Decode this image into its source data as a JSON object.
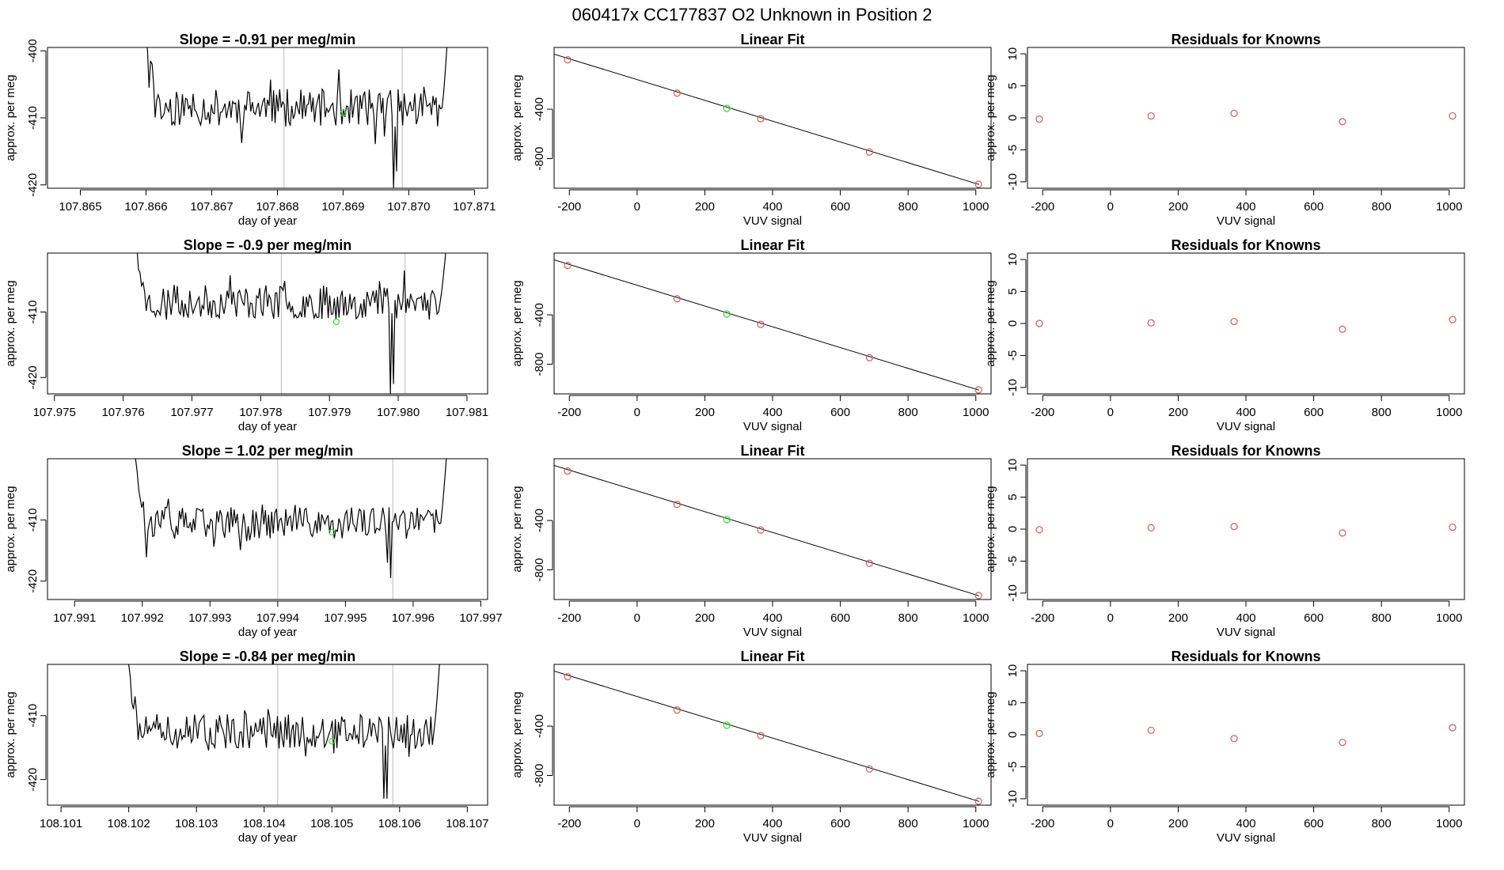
{
  "figure": {
    "title": "060417x      CC177837   O2 Unknown in Position  2"
  },
  "colors": {
    "trace": "#000000",
    "known_point": "#cd5c5c",
    "unknown_point": "#33dd33",
    "vline": "#bbbbbb",
    "axis": "#000000"
  },
  "labels": {
    "per_meg": "approx. per meg",
    "doy": "day of year",
    "vuv": "VUV signal",
    "linear_fit": "Linear Fit",
    "residuals": "Residuals for Knowns"
  },
  "rows": [
    {
      "slope_title": "Slope =  -0.91  per meg/min"
    },
    {
      "slope_title": "Slope =  -0.9  per meg/min"
    },
    {
      "slope_title": "Slope =  1.02  per meg/min"
    },
    {
      "slope_title": "Slope =  -0.84  per meg/min"
    }
  ],
  "chart_data": [
    {
      "type": "line",
      "row": 0,
      "col": 0,
      "title": "Slope =  -0.91  per meg/min",
      "xlabel": "day of year",
      "ylabel": "approx. per meg",
      "xlim": [
        107.8645,
        107.8712
      ],
      "ylim": [
        -420.5,
        -399.5
      ],
      "xticks": [
        107.865,
        107.866,
        107.867,
        107.868,
        107.869,
        107.87,
        107.871
      ],
      "xtick_labels": [
        "107.865",
        "107.866",
        "107.867",
        "107.868",
        "107.869",
        "107.870",
        "107.871"
      ],
      "yticks": [
        -400,
        -410,
        -420
      ],
      "ytick_labels": [
        "-400",
        "-410",
        "-420"
      ],
      "vlines": [
        107.8681,
        107.8699
      ],
      "green_point": {
        "x": 107.869,
        "y": -409.3
      },
      "trace": {
        "x_start": 107.866,
        "x_end": 107.8706,
        "n": 200,
        "mean": -408.5,
        "amp": 2.8,
        "seed": 11,
        "start_values": [
          -398,
          -400,
          -405.5,
          -401.5,
          -402,
          -405
        ],
        "dips": [
          [
            0.82,
            -420.5
          ],
          [
            0.83,
            -418
          ]
        ],
        "spike_up": -398
      }
    },
    {
      "type": "scatter",
      "row": 0,
      "col": 1,
      "title": "Linear Fit",
      "xlabel": "VUV signal",
      "ylabel": "approx. per meg",
      "xlim": [
        -245,
        1045
      ],
      "ylim": [
        -1040,
        100
      ],
      "xticks": [
        -200,
        0,
        200,
        400,
        600,
        800,
        1000
      ],
      "xtick_labels": [
        "-200",
        "0",
        "200",
        "400",
        "600",
        "800",
        "1000"
      ],
      "yticks": [
        -400,
        -800
      ],
      "ytick_labels": [
        "-400",
        "-800"
      ],
      "fit_line": {
        "x": [
          -250,
          1010
        ],
        "y": [
          50,
          -1010
        ]
      },
      "knowns": {
        "x": [
          -205,
          118,
          365,
          686,
          1008
        ],
        "y": [
          0,
          -270,
          -477,
          -747,
          -1008
        ]
      },
      "unknown": {
        "x": 265,
        "y": -393
      }
    },
    {
      "type": "scatter",
      "row": 0,
      "col": 2,
      "title": "Residuals for Knowns",
      "xlabel": "VUV signal",
      "ylabel": "approx. per meg",
      "xlim": [
        -245,
        1045
      ],
      "ylim": [
        -11,
        11
      ],
      "xticks": [
        -200,
        0,
        200,
        400,
        600,
        800,
        1000
      ],
      "xtick_labels": [
        "-200",
        "0",
        "200",
        "400",
        "600",
        "800",
        "1000"
      ],
      "yticks": [
        10,
        5,
        0,
        -5,
        -10
      ],
      "ytick_labels": [
        "10",
        "5",
        "0",
        "-5",
        "-10"
      ],
      "knowns": {
        "x": [
          -210,
          120,
          365,
          685,
          1010
        ],
        "y": [
          -0.2,
          0.3,
          0.7,
          -0.6,
          0.3
        ]
      }
    },
    {
      "type": "line",
      "row": 1,
      "col": 0,
      "title": "Slope =  -0.9  per meg/min",
      "xlabel": "day of year",
      "ylabel": "approx. per meg",
      "xlim": [
        107.9749,
        107.9813
      ],
      "ylim": [
        -422.5,
        -401
      ],
      "xticks": [
        107.975,
        107.976,
        107.977,
        107.978,
        107.979,
        107.98,
        107.981
      ],
      "xtick_labels": [
        "107.975",
        "107.976",
        "107.977",
        "107.978",
        "107.979",
        "107.980",
        "107.981"
      ],
      "yticks": [
        -410,
        -420
      ],
      "ytick_labels": [
        "-410",
        "-420"
      ],
      "vlines": [
        107.9783,
        107.9801
      ],
      "green_point": {
        "x": 107.9791,
        "y": -411.5
      },
      "trace": {
        "x_start": 107.9762,
        "x_end": 107.9807,
        "n": 200,
        "mean": -408.5,
        "amp": 2.6,
        "seed": 23,
        "start_values": [
          -400,
          -403.5,
          -404,
          -406,
          -405.5,
          -407
        ],
        "dips": [
          [
            0.82,
            -422.5
          ],
          [
            0.83,
            -421
          ]
        ],
        "spike_up": -401
      }
    },
    {
      "type": "scatter",
      "row": 1,
      "col": 1,
      "title": "Linear Fit",
      "xlabel": "VUV signal",
      "ylabel": "approx. per meg",
      "xlim": [
        -245,
        1045
      ],
      "ylim": [
        -1040,
        100
      ],
      "xticks": [
        -200,
        0,
        200,
        400,
        600,
        800,
        1000
      ],
      "xtick_labels": [
        "-200",
        "0",
        "200",
        "400",
        "600",
        "800",
        "1000"
      ],
      "yticks": [
        -400,
        -800
      ],
      "ytick_labels": [
        "-400",
        "-800"
      ],
      "fit_line": {
        "x": [
          -250,
          1010
        ],
        "y": [
          50,
          -1010
        ]
      },
      "knowns": {
        "x": [
          -205,
          118,
          365,
          686,
          1008
        ],
        "y": [
          0,
          -270,
          -477,
          -747,
          -1008
        ]
      },
      "unknown": {
        "x": 265,
        "y": -393
      }
    },
    {
      "type": "scatter",
      "row": 1,
      "col": 2,
      "title": "Residuals for Knowns",
      "xlabel": "VUV signal",
      "ylabel": "approx. per meg",
      "xlim": [
        -245,
        1045
      ],
      "ylim": [
        -11,
        11
      ],
      "xticks": [
        -200,
        0,
        200,
        400,
        600,
        800,
        1000
      ],
      "xtick_labels": [
        "-200",
        "0",
        "200",
        "400",
        "600",
        "800",
        "1000"
      ],
      "yticks": [
        10,
        5,
        0,
        -5,
        -10
      ],
      "ytick_labels": [
        "10",
        "5",
        "0",
        "-5",
        "-10"
      ],
      "knowns": {
        "x": [
          -210,
          120,
          365,
          685,
          1010
        ],
        "y": [
          0.0,
          0.1,
          0.3,
          -0.9,
          0.6
        ]
      }
    },
    {
      "type": "line",
      "row": 2,
      "col": 0,
      "title": "Slope =  1.02  per meg/min",
      "xlabel": "day of year",
      "ylabel": "approx. per meg",
      "xlim": [
        107.9906,
        107.9971
      ],
      "ylim": [
        -423,
        -400
      ],
      "xticks": [
        107.991,
        107.992,
        107.993,
        107.994,
        107.995,
        107.996,
        107.997
      ],
      "xtick_labels": [
        "107.991",
        "107.992",
        "107.993",
        "107.994",
        "107.995",
        "107.996",
        "107.997"
      ],
      "yticks": [
        -410,
        -420
      ],
      "ytick_labels": [
        "-410",
        "-420"
      ],
      "vlines": [
        107.994,
        107.9957
      ],
      "green_point": {
        "x": 107.9948,
        "y": -412
      },
      "trace": {
        "x_start": 107.9919,
        "x_end": 107.9965,
        "n": 200,
        "mean": -410.5,
        "amp": 2.6,
        "seed": 37,
        "start_values": [
          -400,
          -402,
          -405,
          -406.5,
          -408,
          -407
        ],
        "dips": [
          [
            0.82,
            -419.5
          ],
          [
            0.81,
            -417
          ]
        ],
        "spike_up": -400
      }
    },
    {
      "type": "scatter",
      "row": 2,
      "col": 1,
      "title": "Linear Fit",
      "xlabel": "VUV signal",
      "ylabel": "approx. per meg",
      "xlim": [
        -245,
        1045
      ],
      "ylim": [
        -1040,
        100
      ],
      "xticks": [
        -200,
        0,
        200,
        400,
        600,
        800,
        1000
      ],
      "xtick_labels": [
        "-200",
        "0",
        "200",
        "400",
        "600",
        "800",
        "1000"
      ],
      "yticks": [
        -400,
        -800
      ],
      "ytick_labels": [
        "-400",
        "-800"
      ],
      "fit_line": {
        "x": [
          -250,
          1010
        ],
        "y": [
          50,
          -1010
        ]
      },
      "knowns": {
        "x": [
          -205,
          118,
          365,
          686,
          1008
        ],
        "y": [
          0,
          -270,
          -477,
          -747,
          -1008
        ]
      },
      "unknown": {
        "x": 265,
        "y": -393
      }
    },
    {
      "type": "scatter",
      "row": 2,
      "col": 2,
      "title": "Residuals for Knowns",
      "xlabel": "VUV signal",
      "ylabel": "approx. per meg",
      "xlim": [
        -245,
        1045
      ],
      "ylim": [
        -11,
        11
      ],
      "xticks": [
        -200,
        0,
        200,
        400,
        600,
        800,
        1000
      ],
      "xtick_labels": [
        "-200",
        "0",
        "200",
        "400",
        "600",
        "800",
        "1000"
      ],
      "yticks": [
        10,
        5,
        0,
        -5,
        -10
      ],
      "ytick_labels": [
        "10",
        "5",
        "0",
        "-5",
        "-10"
      ],
      "knowns": {
        "x": [
          -210,
          120,
          365,
          685,
          1010
        ],
        "y": [
          -0.1,
          0.2,
          0.4,
          -0.6,
          0.3
        ]
      }
    },
    {
      "type": "line",
      "row": 3,
      "col": 0,
      "title": "Slope =  -0.84  per meg/min",
      "xlabel": "day of year",
      "ylabel": "approx. per meg",
      "xlim": [
        108.1008,
        108.1073
      ],
      "ylim": [
        -424,
        -402
      ],
      "xticks": [
        108.101,
        108.102,
        108.103,
        108.104,
        108.105,
        108.106,
        108.107
      ],
      "xtick_labels": [
        "108.101",
        "108.102",
        "108.103",
        "108.104",
        "108.105",
        "108.106",
        "108.107"
      ],
      "yticks": [
        -410,
        -420
      ],
      "ytick_labels": [
        "-410",
        "-420"
      ],
      "vlines": [
        108.1042,
        108.1059
      ],
      "green_point": {
        "x": 108.105,
        "y": -414
      },
      "trace": {
        "x_start": 108.102,
        "x_end": 108.1066,
        "n": 200,
        "mean": -412.5,
        "amp": 2.7,
        "seed": 51,
        "start_values": [
          -402,
          -404,
          -408,
          -409,
          -407,
          -409.5
        ],
        "dips": [
          [
            0.82,
            -423
          ],
          [
            0.83,
            -423
          ]
        ],
        "spike_up": -402
      }
    },
    {
      "type": "scatter",
      "row": 3,
      "col": 1,
      "title": "Linear Fit",
      "xlabel": "VUV signal",
      "ylabel": "approx. per meg",
      "xlim": [
        -245,
        1045
      ],
      "ylim": [
        -1040,
        100
      ],
      "xticks": [
        -200,
        0,
        200,
        400,
        600,
        800,
        1000
      ],
      "xtick_labels": [
        "-200",
        "0",
        "200",
        "400",
        "600",
        "800",
        "1000"
      ],
      "yticks": [
        -400,
        -800
      ],
      "ytick_labels": [
        "-400",
        "-800"
      ],
      "fit_line": {
        "x": [
          -250,
          1010
        ],
        "y": [
          50,
          -1010
        ]
      },
      "knowns": {
        "x": [
          -205,
          118,
          365,
          686,
          1008
        ],
        "y": [
          0,
          -270,
          -477,
          -747,
          -1008
        ]
      },
      "unknown": {
        "x": 265,
        "y": -393
      }
    },
    {
      "type": "scatter",
      "row": 3,
      "col": 2,
      "title": "Residuals for Knowns",
      "xlabel": "VUV signal",
      "ylabel": "approx. per meg",
      "xlim": [
        -245,
        1045
      ],
      "ylim": [
        -11,
        11
      ],
      "xticks": [
        -200,
        0,
        200,
        400,
        600,
        800,
        1000
      ],
      "xtick_labels": [
        "-200",
        "0",
        "200",
        "400",
        "600",
        "800",
        "1000"
      ],
      "yticks": [
        10,
        5,
        0,
        -5,
        -10
      ],
      "ytick_labels": [
        "10",
        "5",
        "0",
        "-5",
        "-10"
      ],
      "knowns": {
        "x": [
          -210,
          120,
          365,
          685,
          1010
        ],
        "y": [
          0.2,
          0.7,
          -0.6,
          -1.2,
          1.1
        ]
      }
    }
  ]
}
